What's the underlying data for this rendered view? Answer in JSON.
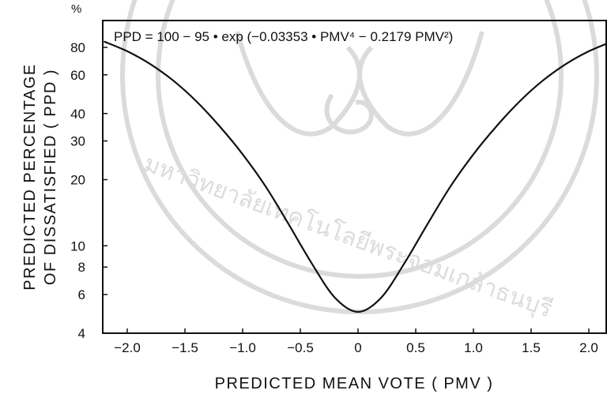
{
  "chart_data": {
    "type": "line",
    "formula": "PPD = 100 − 95 • exp (−0.03353 • PMV⁴ − 0.2179 PMV²)",
    "xlabel": "PREDICTED MEAN VOTE ( PMV )",
    "ylabel_line1": "PREDICTED PERCENTAGE",
    "ylabel_line2": "OF DISSATISFIED ( PPD )",
    "y_unit": "%",
    "xlim": [
      -2.3,
      2.3
    ],
    "ylim": [
      4,
      100
    ],
    "y_scale": "log",
    "x_ticks": [
      {
        "value": -2.0,
        "label": "−2.0"
      },
      {
        "value": -1.5,
        "label": "−1.5"
      },
      {
        "value": -1.0,
        "label": "−1.0"
      },
      {
        "value": -0.5,
        "label": "−0.5"
      },
      {
        "value": 0,
        "label": "0"
      },
      {
        "value": 0.5,
        "label": "0.5"
      },
      {
        "value": 1.0,
        "label": "1.0"
      },
      {
        "value": 1.5,
        "label": "1.5"
      },
      {
        "value": 2.0,
        "label": "2.0"
      }
    ],
    "y_ticks": [
      {
        "value": 4,
        "label": "4"
      },
      {
        "value": 6,
        "label": "6"
      },
      {
        "value": 8,
        "label": "8"
      },
      {
        "value": 10,
        "label": "10"
      },
      {
        "value": 20,
        "label": "20"
      },
      {
        "value": 30,
        "label": "30"
      },
      {
        "value": 40,
        "label": "40"
      },
      {
        "value": 60,
        "label": "60"
      },
      {
        "value": 80,
        "label": "80"
      }
    ],
    "series": [
      {
        "x": [
          -2.2,
          -2.0,
          -1.8,
          -1.6,
          -1.4,
          -1.2,
          -1.0,
          -0.8,
          -0.6,
          -0.4,
          -0.2,
          0,
          0.2,
          0.4,
          0.6,
          0.8,
          1.0,
          1.2,
          1.4,
          1.6,
          1.8,
          2.0,
          2.2
        ],
        "y": [
          85,
          76.8,
          67.1,
          56.4,
          45.4,
          35.0,
          26.1,
          18.6,
          12.5,
          8.3,
          5.8,
          5.0,
          5.8,
          8.3,
          12.5,
          18.6,
          26.1,
          35.0,
          45.4,
          56.4,
          67.1,
          76.8,
          85
        ]
      }
    ],
    "grid": false,
    "legend": "none"
  },
  "watermark": {
    "text": "มหาวิทยาลัยเทคโนโลยีพระจอมเกล้าธนบุรี"
  }
}
